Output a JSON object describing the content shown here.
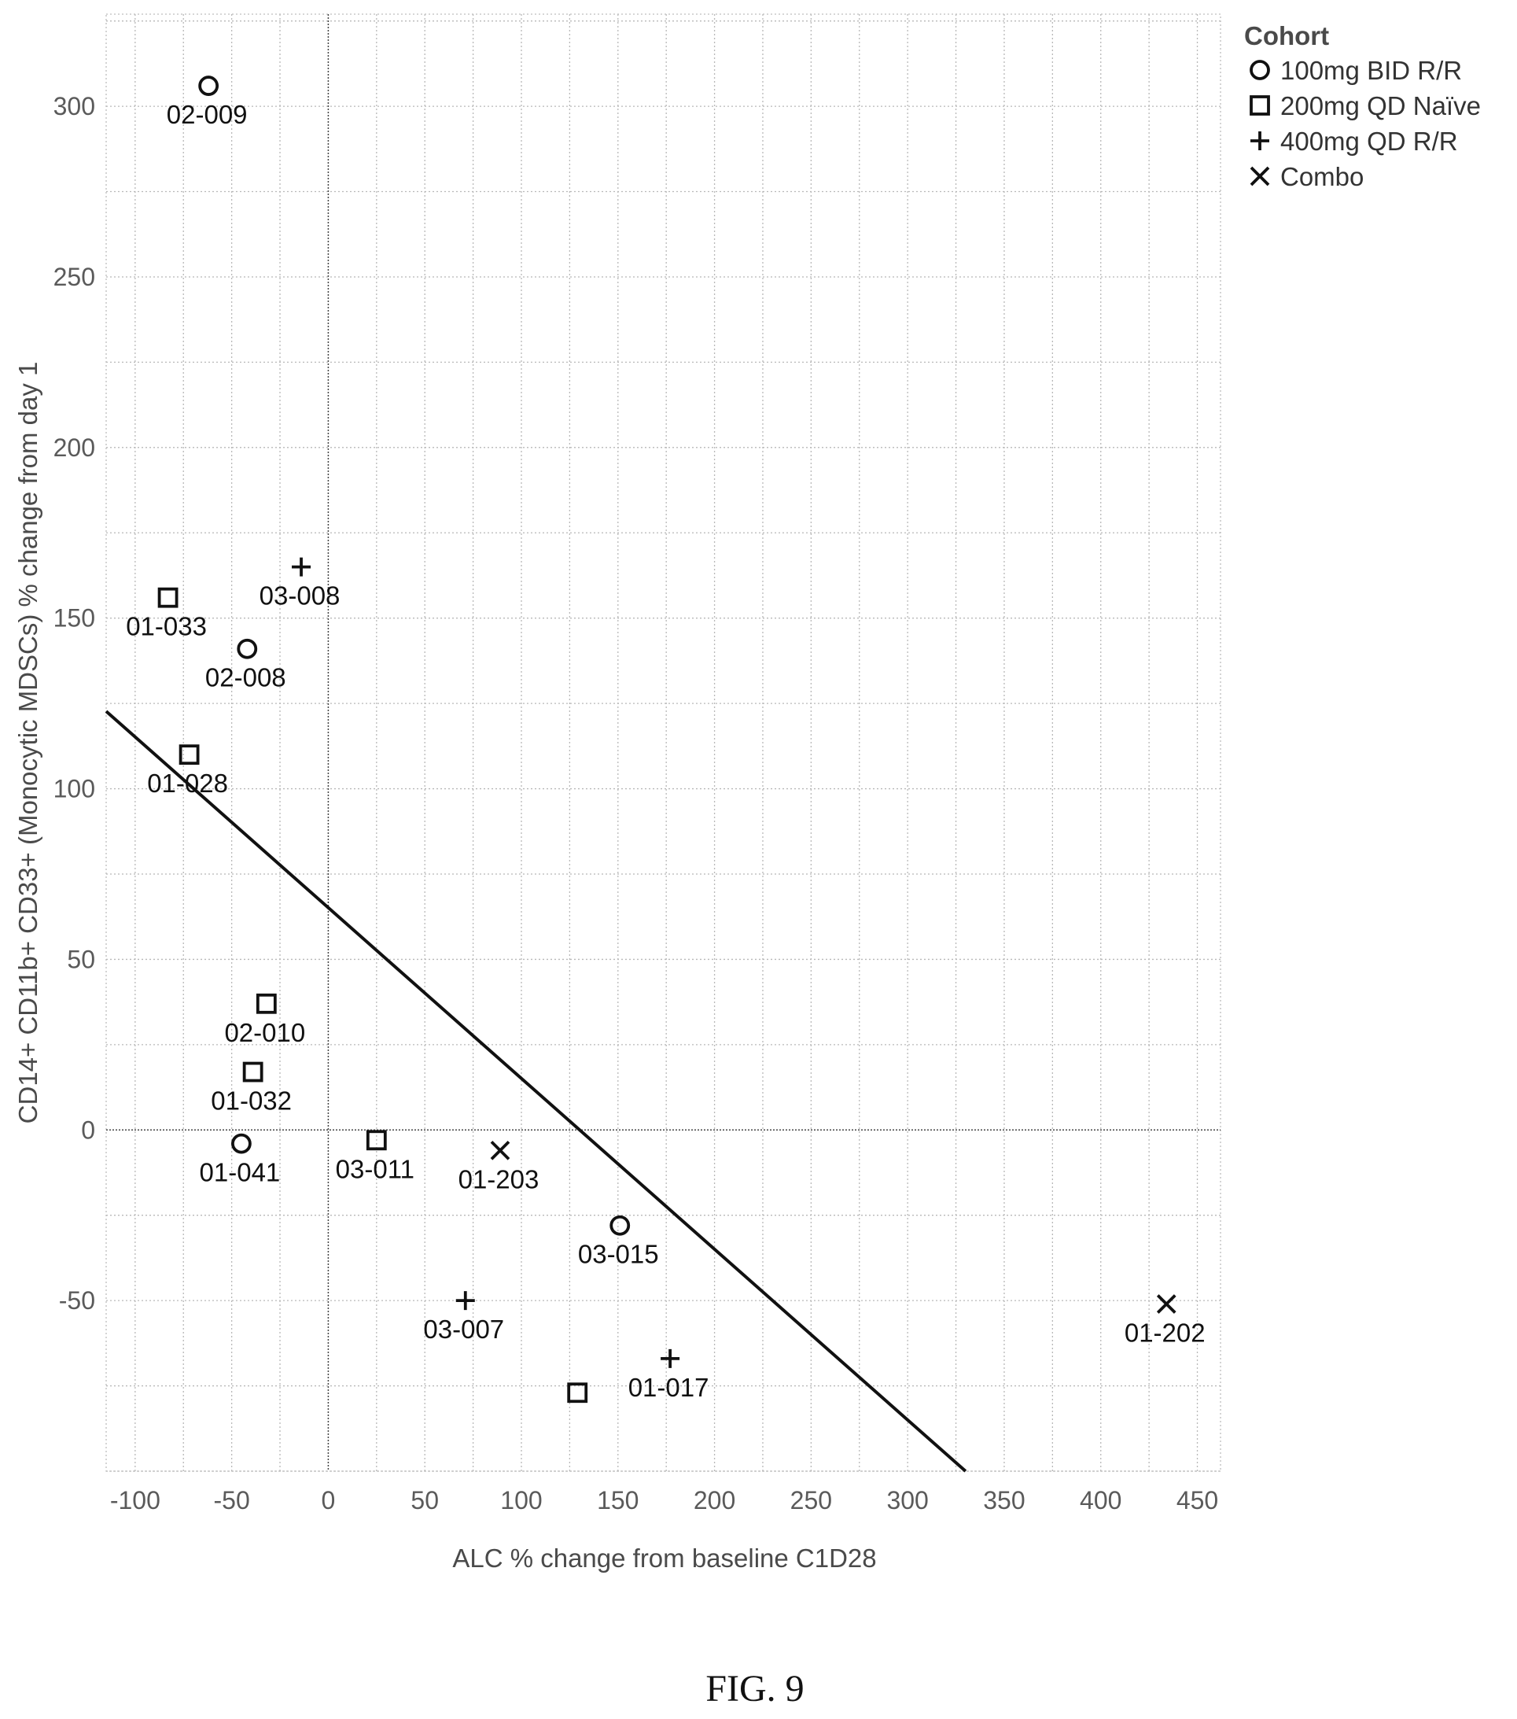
{
  "chart_data": {
    "type": "scatter",
    "title": "",
    "xlabel": "ALC % change from baseline C1D28",
    "ylabel": "CD14+ CD11b+ CD33+ (Monocytic MDSCs) % change from day 1",
    "xlim": [
      -115,
      462
    ],
    "ylim": [
      -100,
      327
    ],
    "xticks": [
      -100,
      -50,
      0,
      50,
      100,
      150,
      200,
      250,
      300,
      350,
      400,
      450
    ],
    "yticks": [
      -50,
      0,
      50,
      100,
      150,
      200,
      250,
      300
    ],
    "grid": true,
    "legend": {
      "title": "Cohort",
      "placement": "top-right, outside plot",
      "entries": [
        {
          "label": "100mg BID R/R",
          "marker": "circle"
        },
        {
          "label": "200mg QD Naïve",
          "marker": "square"
        },
        {
          "label": "400mg QD R/R",
          "marker": "plus"
        },
        {
          "label": "Combo",
          "marker": "x"
        }
      ]
    },
    "series": [
      {
        "name": "100mg BID R/R",
        "marker": "circle",
        "points": [
          {
            "label": "02-009",
            "x": -62,
            "y": 306
          },
          {
            "label": "02-008",
            "x": -42,
            "y": 141
          },
          {
            "label": "01-041",
            "x": -45,
            "y": -4
          },
          {
            "label": "03-015",
            "x": 151,
            "y": -28
          }
        ]
      },
      {
        "name": "200mg QD Naïve",
        "marker": "square",
        "points": [
          {
            "label": "01-033",
            "x": -83,
            "y": 156
          },
          {
            "label": "01-028",
            "x": -72,
            "y": 110
          },
          {
            "label": "02-010",
            "x": -32,
            "y": 37
          },
          {
            "label": "01-032",
            "x": -39,
            "y": 17
          },
          {
            "label": "03-011",
            "x": 25,
            "y": -3
          },
          {
            "label": "",
            "x": 129,
            "y": -77
          }
        ]
      },
      {
        "name": "400mg QD R/R",
        "marker": "plus",
        "points": [
          {
            "label": "03-008",
            "x": -14,
            "y": 165
          },
          {
            "label": "03-007",
            "x": 71,
            "y": -50
          },
          {
            "label": "01-017",
            "x": 177,
            "y": -67
          }
        ]
      },
      {
        "name": "Combo",
        "marker": "x",
        "points": [
          {
            "label": "01-203",
            "x": 89,
            "y": -6
          },
          {
            "label": "01-202",
            "x": 434,
            "y": -51
          }
        ]
      }
    ],
    "trendline": {
      "x1": -115,
      "y1": 122.7,
      "x2": 330,
      "y2": -100
    }
  },
  "caption": "FIG. 9"
}
